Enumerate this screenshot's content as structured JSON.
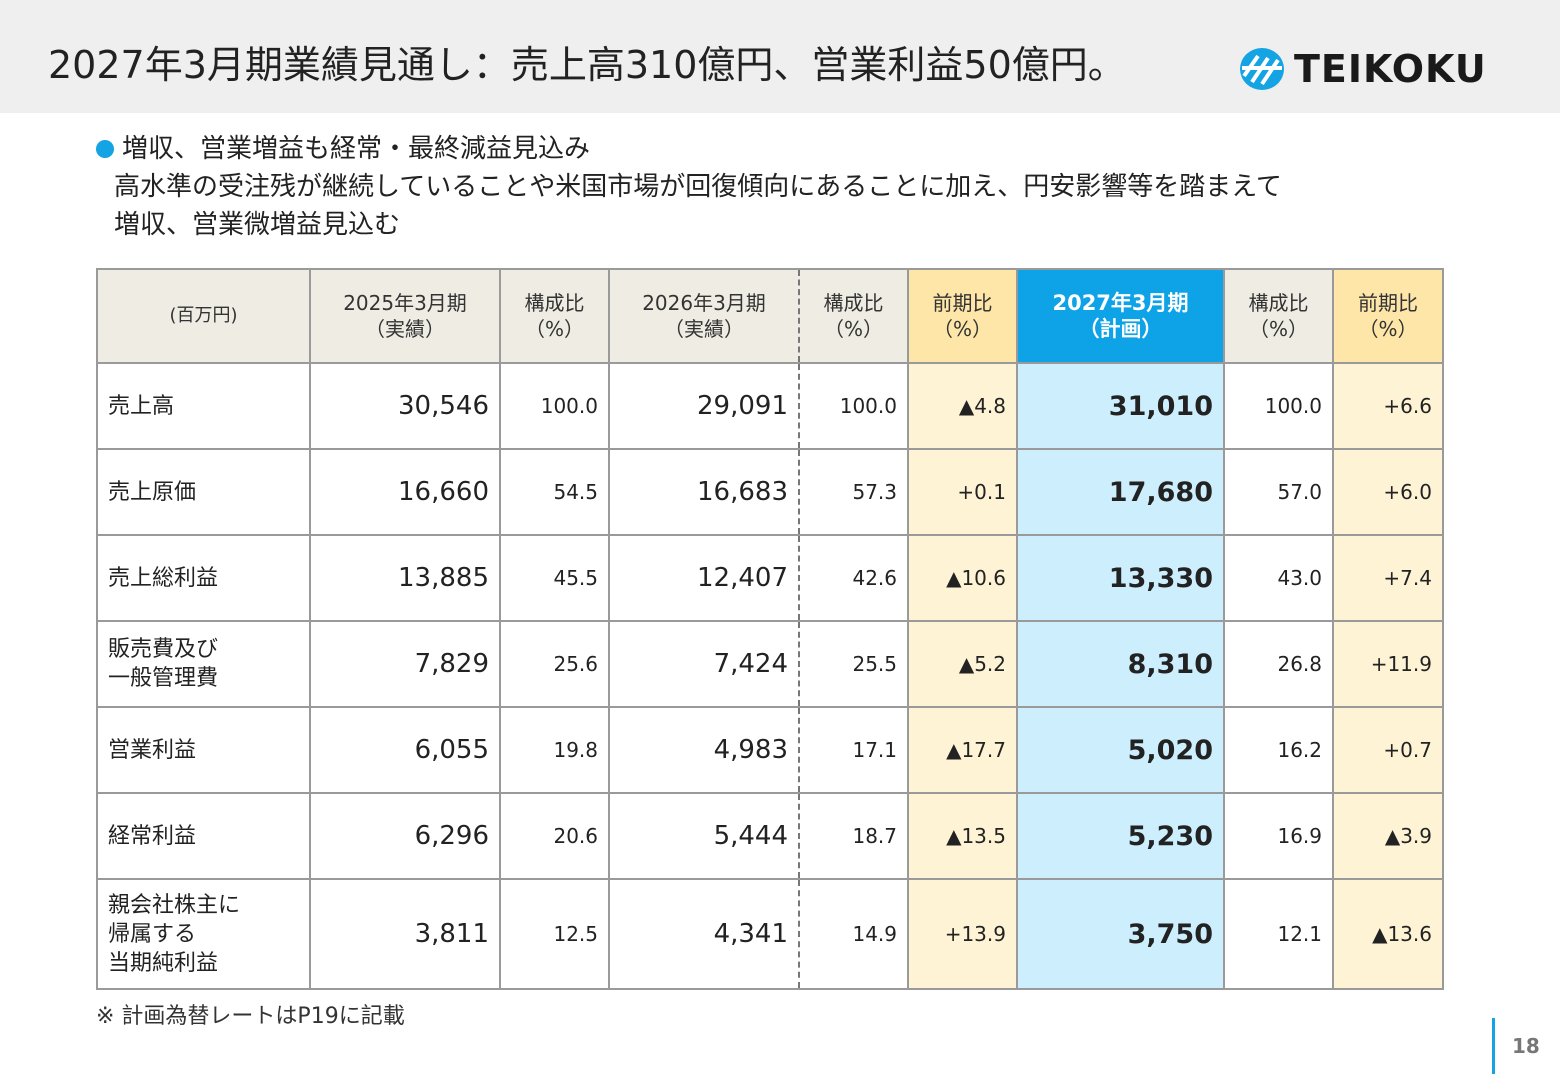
{
  "header": {
    "title": "2027年3月期業績見通し：売上高310億円、営業利益50億円。",
    "logo_text": "TEIKOKU"
  },
  "summary": {
    "headline": "増収、営業増益も経常・最終減益見込み",
    "line1": "高水準の受注残が継続していることや米国市場が回復傾向にあることに加え、円安影響等を踏まえて",
    "line2": "増収、営業微増益見込む"
  },
  "table": {
    "headers": {
      "unit": "(百万円)",
      "fy2025_l1": "2025年3月期",
      "fy2025_l2": "（実績）",
      "ratio_l1": "構成比",
      "ratio_l2": "（%）",
      "fy2026_l1": "2026年3月期",
      "fy2026_l2": "（実績）",
      "yoy_l1": "前期比",
      "yoy_l2": "（%）",
      "plan_l1": "2027年3月期",
      "plan_l2": "（計画）"
    },
    "rows": [
      {
        "item": [
          "売上高"
        ],
        "fy2025": "30,546",
        "r2025": "100.0",
        "fy2026": "29,091",
        "r2026": "100.0",
        "yoy2026": "▲4.8",
        "plan": "31,010",
        "rplan": "100.0",
        "yoyplan": "+6.6"
      },
      {
        "item": [
          "売上原価"
        ],
        "fy2025": "16,660",
        "r2025": "54.5",
        "fy2026": "16,683",
        "r2026": "57.3",
        "yoy2026": "+0.1",
        "plan": "17,680",
        "rplan": "57.0",
        "yoyplan": "+6.0"
      },
      {
        "item": [
          "売上総利益"
        ],
        "fy2025": "13,885",
        "r2025": "45.5",
        "fy2026": "12,407",
        "r2026": "42.6",
        "yoy2026": "▲10.6",
        "plan": "13,330",
        "rplan": "43.0",
        "yoyplan": "+7.4"
      },
      {
        "item": [
          "販売費及び",
          "一般管理費"
        ],
        "fy2025": "7,829",
        "r2025": "25.6",
        "fy2026": "7,424",
        "r2026": "25.5",
        "yoy2026": "▲5.2",
        "plan": "8,310",
        "rplan": "26.8",
        "yoyplan": "+11.9"
      },
      {
        "item": [
          "営業利益"
        ],
        "fy2025": "6,055",
        "r2025": "19.8",
        "fy2026": "4,983",
        "r2026": "17.1",
        "yoy2026": "▲17.7",
        "plan": "5,020",
        "rplan": "16.2",
        "yoyplan": "+0.7"
      },
      {
        "item": [
          "経常利益"
        ],
        "fy2025": "6,296",
        "r2025": "20.6",
        "fy2026": "5,444",
        "r2026": "18.7",
        "yoy2026": "▲13.5",
        "plan": "5,230",
        "rplan": "16.9",
        "yoyplan": "▲3.9"
      },
      {
        "item": [
          "親会社株主に",
          "帰属する",
          "当期純利益"
        ],
        "fy2025": "3,811",
        "r2025": "12.5",
        "fy2026": "4,341",
        "r2026": "14.9",
        "yoy2026": "+13.9",
        "plan": "3,750",
        "rplan": "12.1",
        "yoyplan": "▲13.6"
      }
    ]
  },
  "footnote": "※ 計画為替レートはP19に記載",
  "page_number": "18",
  "colors": {
    "accent": "#14a3e3",
    "plan_header": "#0ea2e6",
    "plan_cell": "#cdeefd",
    "yoy_header": "#fde6a8",
    "yoy_cell": "#fff3d6",
    "header_band": "#efefef"
  }
}
